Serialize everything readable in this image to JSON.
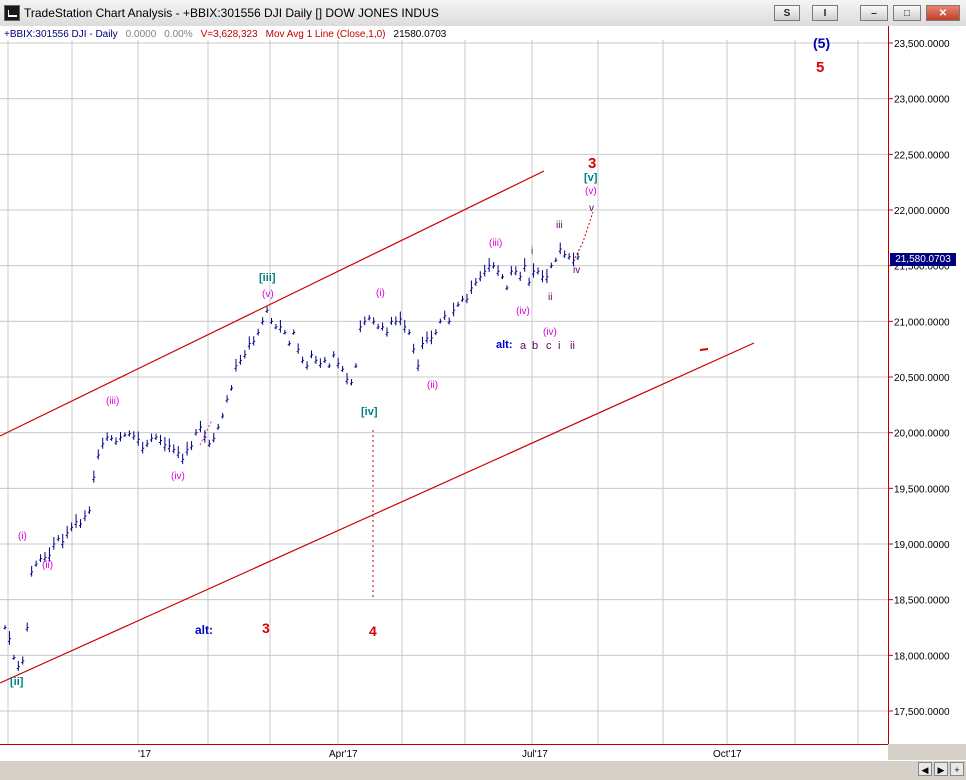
{
  "window": {
    "title": "TradeStation Chart Analysis - +BBIX:301556 DJI Daily [] DOW JONES INDUS",
    "buttons": {
      "s": "S",
      "i": "I",
      "min": "–",
      "max": "□",
      "close": "✕"
    }
  },
  "info_line": {
    "symbol": "+BBIX:301556 DJI - Daily",
    "change": "0.0000",
    "change_pct": "0.00%",
    "volume": "V=3,628,323",
    "indicator": "Mov Avg 1 Line (Close,1,0)",
    "last": "21580.0703"
  },
  "last_price_badge": "21,580.0703",
  "colors": {
    "red": "#cc0000",
    "magenta": "#dd00dd",
    "teal": "#008080",
    "purple": "#660066",
    "navy": "#000080",
    "wave": "#dd22cc"
  },
  "chart_data": {
    "type": "line",
    "x_tick_labels": [
      "'17",
      "Apr'17",
      "Jul'17",
      "Oct'17"
    ],
    "y_tick_labels": [
      "23,500.0000",
      "23,000.0000",
      "22,500.0000",
      "22,000.0000",
      "21,500.0000",
      "21,000.0000",
      "20,500.0000",
      "20,000.0000",
      "19,500.0000",
      "19,000.0000",
      "18,500.0000",
      "18,000.0000",
      "17,500.0000"
    ],
    "ylim": [
      17350,
      23750
    ],
    "grid": true,
    "series": [
      {
        "values": [
          18250,
          18150,
          17980,
          17900,
          17950,
          18250,
          18750,
          18820,
          18870,
          18880,
          18900,
          19000,
          19050,
          19020,
          19100,
          19150,
          19200,
          19180,
          19250,
          19300,
          19600,
          19800,
          19900,
          19960,
          19950,
          19920,
          19960,
          19980,
          19990,
          19970,
          19940,
          19860,
          19900,
          19950,
          19960,
          19930,
          19890,
          19880,
          19850,
          19820,
          19760,
          19850,
          19880,
          20000,
          20050,
          19960,
          19900,
          19950,
          20050,
          20150,
          20300,
          20400,
          20600,
          20650,
          20700,
          20800,
          20820,
          20900,
          21000,
          21100,
          21000,
          20950,
          20950,
          20900,
          20800,
          20900,
          20750,
          20650,
          20600,
          20700,
          20650,
          20620,
          20650,
          20600,
          20700,
          20620,
          20570,
          20480,
          20450,
          20600,
          20950,
          21000,
          21030,
          21000,
          20950,
          20950,
          20900,
          21000,
          21000,
          21020,
          20950,
          20900,
          20750,
          20600,
          20800,
          20850,
          20850,
          20900,
          21000,
          21050,
          21000,
          21100,
          21150,
          21200,
          21200,
          21300,
          21350,
          21400,
          21450,
          21500,
          21500,
          21450,
          21400,
          21300,
          21450,
          21450,
          21400,
          21500,
          21350,
          21450,
          21450,
          21400,
          21400,
          21500,
          21550,
          21650,
          21600,
          21580,
          21550,
          21580
        ]
      }
    ]
  },
  "wave_labels": {
    "ii_bracket_low": "[ii]",
    "i_paren_1": "(i)",
    "ii_paren_1": "(ii)",
    "iii_paren_1": "(iii)",
    "iv_paren_1": "(iv)",
    "v_paren_1": "(v)",
    "iii_bracket": "[iii]",
    "iv_bracket": "[iv]",
    "i_paren_2": "(i)",
    "ii_paren_2": "(ii)",
    "iii_paren_2": "(iii)",
    "iv_paren_2": "(iv)",
    "iv_paren_3": "(iv)",
    "v_paren_2": "(v)",
    "v_bracket": "[v]",
    "i_small": "i",
    "ii_small": "ii",
    "iii_small": "iii",
    "iv_small": "iv",
    "v_small": "v",
    "alt_top": "alt:",
    "alt_a": "a",
    "alt_b": "b",
    "alt_c": "c",
    "alt_i": "i",
    "alt_ii": "ii",
    "alt_bottom": "alt:",
    "red_3_bottom": "3",
    "red_4": "4",
    "red_3_top": "3",
    "red_5": "5",
    "blue_5": "(5)"
  }
}
